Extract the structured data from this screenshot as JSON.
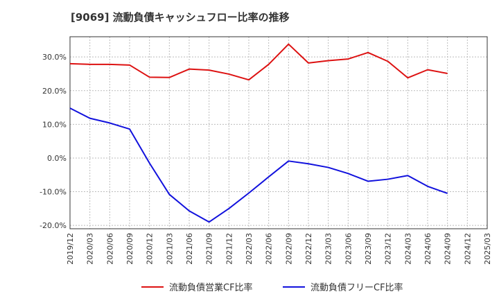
{
  "chart_data": {
    "type": "line",
    "title": "[9069]  流動負債キャッシュフロー比率の推移",
    "xlabel": "",
    "ylabel": "",
    "ylim": [
      -21,
      36
    ],
    "yticks": [
      30,
      20,
      10,
      0,
      -10,
      -20
    ],
    "ytick_labels": [
      "30.0%",
      "20.0%",
      "10.0%",
      "0.0%",
      "-10.0%",
      "-20.0%"
    ],
    "x": [
      "2019/12",
      "2020/03",
      "2020/06",
      "2020/09",
      "2020/12",
      "2021/03",
      "2021/06",
      "2021/09",
      "2021/12",
      "2022/03",
      "2022/06",
      "2022/09",
      "2022/12",
      "2023/03",
      "2023/06",
      "2023/09",
      "2023/12",
      "2024/03",
      "2024/06",
      "2024/09",
      "2024/12",
      "2025/03"
    ],
    "grid": true,
    "legend_position": "bottom",
    "series": [
      {
        "name": "流動負債営業CF比率",
        "color": "#dd1111",
        "values": [
          28.0,
          27.8,
          27.8,
          27.6,
          24.0,
          23.9,
          26.4,
          26.1,
          24.9,
          23.2,
          27.8,
          33.8,
          28.2,
          28.9,
          29.4,
          31.3,
          28.7,
          23.8,
          26.2,
          25.1,
          null,
          null
        ]
      },
      {
        "name": "流動負債フリーCF比率",
        "color": "#1111dd",
        "values": [
          14.8,
          11.8,
          10.4,
          8.6,
          -1.5,
          -10.8,
          -15.7,
          -19.0,
          -15.0,
          -10.4,
          -5.6,
          -0.9,
          -1.7,
          -2.8,
          -4.6,
          -6.9,
          -6.3,
          -5.2,
          -8.4,
          -10.5,
          null,
          null
        ]
      }
    ]
  }
}
